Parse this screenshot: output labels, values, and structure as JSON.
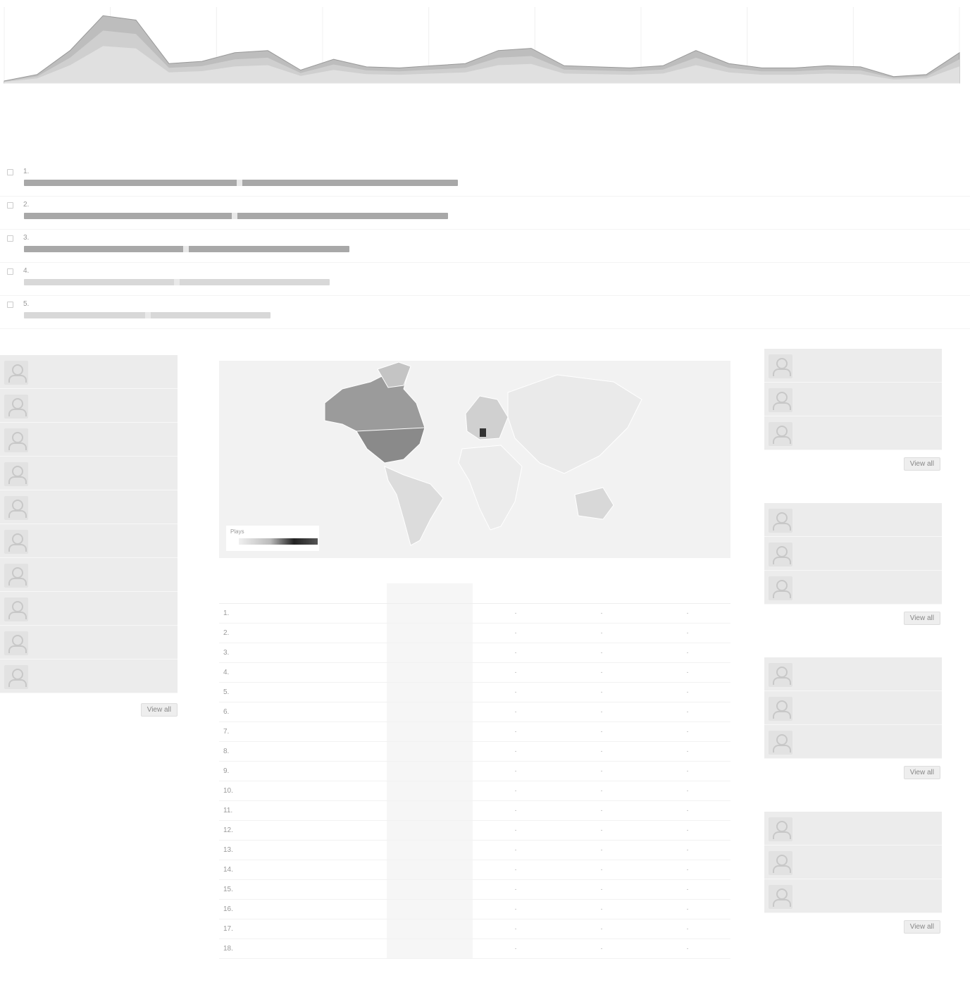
{
  "chart_data": {
    "type": "area",
    "x_tick_labels": [
      "",
      "",
      "",
      "",
      "",
      "",
      "",
      "",
      "",
      ""
    ],
    "values": [
      2,
      8,
      30,
      62,
      58,
      18,
      20,
      28,
      30,
      12,
      22,
      15,
      14,
      16,
      18,
      30,
      32,
      16,
      15,
      14,
      16,
      30,
      18,
      14,
      14,
      16,
      15,
      6,
      8,
      28
    ],
    "series_colors": [
      "#bdbdbd",
      "#cfcfcf",
      "#e0e0e0"
    ]
  },
  "top_tracks": [
    {
      "rank": "1.",
      "title": "",
      "count": "",
      "fraction": 0.88
    },
    {
      "rank": "2.",
      "title": "",
      "count": "",
      "fraction": 0.86
    },
    {
      "rank": "3.",
      "title": "",
      "count": "",
      "fraction": 0.66
    },
    {
      "rank": "4.",
      "title": "",
      "count": "",
      "fraction": 0.62
    },
    {
      "rank": "5.",
      "title": "",
      "count": "",
      "fraction": 0.5
    }
  ],
  "listeners": {
    "heading": "",
    "view_all": "View all",
    "items": [
      {
        "name": "",
        "sub": "",
        "time": ""
      },
      {
        "name": "",
        "sub": "",
        "time": ""
      },
      {
        "name": "",
        "sub": "",
        "time": ""
      },
      {
        "name": "",
        "sub": "",
        "time": ""
      },
      {
        "name": "",
        "sub": "",
        "time": ""
      },
      {
        "name": "",
        "sub": "",
        "time": ""
      },
      {
        "name": "",
        "sub": "",
        "time": ""
      },
      {
        "name": "",
        "sub": "",
        "time": ""
      },
      {
        "name": "",
        "sub": "",
        "time": ""
      },
      {
        "name": "",
        "sub": "",
        "time": ""
      }
    ]
  },
  "map": {
    "caption": "",
    "legend_label": "Plays"
  },
  "country_table": {
    "headers": [
      "",
      "",
      "",
      ""
    ],
    "rows": [
      {
        "rank": "1.",
        "name": "",
        "pct": "",
        "plays": ""
      },
      {
        "rank": "2.",
        "name": "",
        "pct": "",
        "plays": ""
      },
      {
        "rank": "3.",
        "name": "",
        "pct": "",
        "plays": ""
      },
      {
        "rank": "4.",
        "name": "",
        "pct": "",
        "plays": ""
      },
      {
        "rank": "5.",
        "name": "",
        "pct": "",
        "plays": ""
      },
      {
        "rank": "6.",
        "name": "",
        "pct": "",
        "plays": ""
      },
      {
        "rank": "7.",
        "name": "",
        "pct": "",
        "plays": ""
      },
      {
        "rank": "8.",
        "name": "",
        "pct": "",
        "plays": ""
      },
      {
        "rank": "9.",
        "name": "",
        "pct": "",
        "plays": ""
      },
      {
        "rank": "10.",
        "name": "",
        "pct": "",
        "plays": ""
      },
      {
        "rank": "11.",
        "name": "",
        "pct": "",
        "plays": ""
      },
      {
        "rank": "12.",
        "name": "",
        "pct": "",
        "plays": ""
      },
      {
        "rank": "13.",
        "name": "",
        "pct": "",
        "plays": ""
      },
      {
        "rank": "14.",
        "name": "",
        "pct": "",
        "plays": ""
      },
      {
        "rank": "15.",
        "name": "",
        "pct": "",
        "plays": ""
      },
      {
        "rank": "16.",
        "name": "",
        "pct": "",
        "plays": ""
      },
      {
        "rank": "17.",
        "name": "",
        "pct": "",
        "plays": ""
      },
      {
        "rank": "18.",
        "name": "",
        "pct": "",
        "plays": ""
      }
    ]
  },
  "right_boxes": [
    {
      "heading": "",
      "view_all": "View all",
      "items": [
        {
          "name": "",
          "sub": "",
          "time": ""
        },
        {
          "name": "",
          "sub": "",
          "time": ""
        },
        {
          "name": "",
          "sub": "",
          "time": ""
        }
      ]
    },
    {
      "heading": "",
      "view_all": "View all",
      "items": [
        {
          "name": "",
          "sub": "",
          "time": ""
        },
        {
          "name": "",
          "sub": "",
          "time": ""
        },
        {
          "name": "",
          "sub": "",
          "time": ""
        }
      ]
    },
    {
      "heading": "",
      "view_all": "View all",
      "items": [
        {
          "name": "",
          "sub": "",
          "time": ""
        },
        {
          "name": "",
          "sub": "",
          "time": ""
        },
        {
          "name": "",
          "sub": "",
          "time": ""
        }
      ]
    },
    {
      "heading": "",
      "view_all": "View all",
      "items": [
        {
          "name": "",
          "sub": "",
          "time": ""
        },
        {
          "name": "",
          "sub": "",
          "time": ""
        },
        {
          "name": "",
          "sub": "",
          "time": ""
        }
      ]
    }
  ]
}
